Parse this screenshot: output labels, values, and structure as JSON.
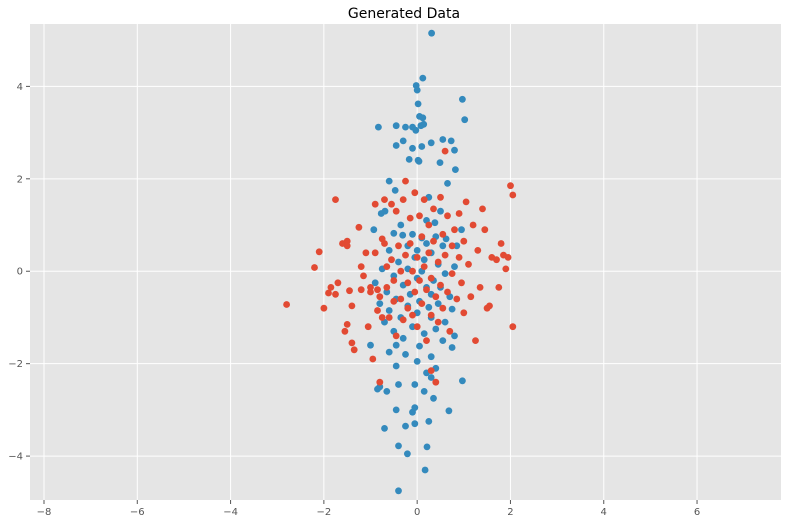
{
  "chart_data": {
    "type": "scatter",
    "title": "Generated Data",
    "xlabel": "",
    "ylabel": "",
    "xlim": [
      -8.3,
      7.8
    ],
    "ylim": [
      -4.95,
      5.35
    ],
    "x_ticks": [
      -8,
      -6,
      -4,
      -2,
      0,
      2,
      4,
      6
    ],
    "y_ticks": [
      -4,
      -2,
      0,
      2,
      4
    ],
    "grid": true,
    "background": "#e5e5e5",
    "grid_color": "#ffffff",
    "series": [
      {
        "color": "#348abd",
        "points": [
          [
            0.31,
            5.15
          ],
          [
            0.12,
            4.18
          ],
          [
            0.0,
            3.92
          ],
          [
            -0.02,
            4.02
          ],
          [
            0.97,
            3.72
          ],
          [
            0.02,
            3.62
          ],
          [
            1.02,
            3.28
          ],
          [
            -0.83,
            3.12
          ],
          [
            -0.45,
            3.15
          ],
          [
            -0.25,
            3.12
          ],
          [
            -0.1,
            3.12
          ],
          [
            0.08,
            3.15
          ],
          [
            0.14,
            3.18
          ],
          [
            0.05,
            3.35
          ],
          [
            0.12,
            3.32
          ],
          [
            -0.03,
            3.05
          ],
          [
            0.55,
            2.85
          ],
          [
            0.73,
            2.82
          ],
          [
            0.3,
            2.78
          ],
          [
            0.8,
            2.62
          ],
          [
            -0.45,
            2.72
          ],
          [
            -0.1,
            2.66
          ],
          [
            0.1,
            2.7
          ],
          [
            -0.3,
            2.82
          ],
          [
            0.49,
            2.35
          ],
          [
            -0.17,
            2.42
          ],
          [
            0.02,
            2.4
          ],
          [
            0.04,
            2.38
          ],
          [
            0.82,
            2.2
          ],
          [
            0.65,
            1.9
          ],
          [
            -0.6,
            1.95
          ],
          [
            -0.47,
            1.75
          ],
          [
            0.25,
            1.6
          ],
          [
            -0.69,
            1.3
          ],
          [
            -0.77,
            1.25
          ],
          [
            0.5,
            1.3
          ],
          [
            0.2,
            1.1
          ],
          [
            -0.35,
            1.0
          ],
          [
            0.38,
            1.05
          ],
          [
            0.95,
            0.9
          ],
          [
            -0.93,
            0.9
          ],
          [
            -0.5,
            0.82
          ],
          [
            -0.31,
            0.78
          ],
          [
            -0.1,
            0.8
          ],
          [
            0.1,
            0.72
          ],
          [
            0.4,
            0.75
          ],
          [
            0.62,
            0.7
          ],
          [
            0.2,
            0.6
          ],
          [
            -0.2,
            0.55
          ],
          [
            0.55,
            0.55
          ],
          [
            0.85,
            0.55
          ],
          [
            -0.6,
            0.45
          ],
          [
            0.0,
            0.45
          ],
          [
            0.3,
            0.4
          ],
          [
            -0.05,
            0.3
          ],
          [
            0.15,
            0.25
          ],
          [
            -0.4,
            0.2
          ],
          [
            0.45,
            0.15
          ],
          [
            0.8,
            0.1
          ],
          [
            -0.75,
            0.05
          ],
          [
            -0.2,
            0.05
          ],
          [
            0.1,
            0.0
          ],
          [
            0.6,
            -0.05
          ],
          [
            -0.5,
            -0.1
          ],
          [
            0.0,
            -0.15
          ],
          [
            0.35,
            -0.2
          ],
          [
            -0.9,
            -0.25
          ],
          [
            -0.3,
            -0.3
          ],
          [
            0.2,
            -0.35
          ],
          [
            0.5,
            -0.35
          ],
          [
            -0.65,
            -0.45
          ],
          [
            -0.15,
            -0.5
          ],
          [
            0.3,
            -0.5
          ],
          [
            0.7,
            -0.55
          ],
          [
            -0.45,
            -0.6
          ],
          [
            0.05,
            -0.65
          ],
          [
            0.45,
            -0.7
          ],
          [
            -0.8,
            -0.7
          ],
          [
            -0.2,
            -0.75
          ],
          [
            0.25,
            -0.78
          ],
          [
            0.75,
            -0.82
          ],
          [
            -0.6,
            -0.85
          ],
          [
            0.0,
            -0.9
          ],
          [
            -0.35,
            -1.0
          ],
          [
            0.3,
            -1.0
          ],
          [
            0.6,
            -1.1
          ],
          [
            -0.7,
            -1.1
          ],
          [
            -0.1,
            -1.2
          ],
          [
            0.4,
            -1.25
          ],
          [
            -0.5,
            -1.3
          ],
          [
            0.15,
            -1.35
          ],
          [
            0.8,
            -1.4
          ],
          [
            -0.3,
            -1.45
          ],
          [
            0.55,
            -1.5
          ],
          [
            -1.0,
            -1.6
          ],
          [
            -0.45,
            -1.6
          ],
          [
            0.05,
            -1.62
          ],
          [
            0.75,
            -1.65
          ],
          [
            -0.6,
            -1.75
          ],
          [
            -0.25,
            -1.8
          ],
          [
            0.3,
            -1.85
          ],
          [
            0.0,
            -1.95
          ],
          [
            -0.45,
            -2.05
          ],
          [
            0.4,
            -2.1
          ],
          [
            0.3,
            -2.3
          ],
          [
            0.2,
            -2.2
          ],
          [
            0.97,
            -2.37
          ],
          [
            -0.4,
            -2.45
          ],
          [
            -0.8,
            -2.5
          ],
          [
            -0.85,
            -2.55
          ],
          [
            -0.05,
            -2.45
          ],
          [
            0.15,
            -2.6
          ],
          [
            0.35,
            -2.75
          ],
          [
            -0.65,
            -2.6
          ],
          [
            -0.45,
            -3.0
          ],
          [
            -0.05,
            -2.95
          ],
          [
            -0.1,
            -3.05
          ],
          [
            0.68,
            -3.02
          ],
          [
            -0.25,
            -3.35
          ],
          [
            -0.05,
            -3.3
          ],
          [
            0.25,
            -3.25
          ],
          [
            -0.7,
            -3.4
          ],
          [
            -0.4,
            -3.78
          ],
          [
            0.21,
            -3.8
          ],
          [
            -0.21,
            -3.95
          ],
          [
            0.17,
            -4.3
          ],
          [
            -0.4,
            -4.75
          ]
        ]
      },
      {
        "color": "#e24a33",
        "points": [
          [
            -2.8,
            -0.72
          ],
          [
            -2.1,
            0.42
          ],
          [
            -2.2,
            0.08
          ],
          [
            -1.85,
            -0.35
          ],
          [
            -1.9,
            -0.47
          ],
          [
            -1.75,
            -0.5
          ],
          [
            -2.0,
            -0.8
          ],
          [
            -1.75,
            1.55
          ],
          [
            -1.7,
            -0.25
          ],
          [
            -1.6,
            0.6
          ],
          [
            -1.5,
            0.65
          ],
          [
            -1.5,
            0.55
          ],
          [
            -1.55,
            -1.3
          ],
          [
            -1.5,
            -1.15
          ],
          [
            -1.45,
            -0.42
          ],
          [
            -1.4,
            -0.75
          ],
          [
            -1.4,
            -1.55
          ],
          [
            -1.35,
            -1.7
          ],
          [
            -1.25,
            0.95
          ],
          [
            -1.2,
            0.1
          ],
          [
            -1.2,
            -0.4
          ],
          [
            -1.15,
            -0.1
          ],
          [
            -1.1,
            0.4
          ],
          [
            -1.05,
            -1.2
          ],
          [
            -1.0,
            -0.45
          ],
          [
            -1.0,
            -0.35
          ],
          [
            -0.95,
            -1.9
          ],
          [
            -0.9,
            1.45
          ],
          [
            -0.9,
            0.4
          ],
          [
            -0.85,
            -0.4
          ],
          [
            -0.85,
            -0.85
          ],
          [
            -0.8,
            -0.55
          ],
          [
            -0.75,
            0.7
          ],
          [
            -0.75,
            -1.0
          ],
          [
            -0.7,
            1.55
          ],
          [
            -0.7,
            0.6
          ],
          [
            -0.65,
            0.1
          ],
          [
            -0.65,
            -0.35
          ],
          [
            -0.6,
            -1.0
          ],
          [
            -0.55,
            1.45
          ],
          [
            -0.55,
            0.25
          ],
          [
            -0.5,
            -0.2
          ],
          [
            -0.5,
            -0.65
          ],
          [
            -0.45,
            1.3
          ],
          [
            -0.45,
            -1.4
          ],
          [
            -0.4,
            0.55
          ],
          [
            -0.35,
            0.0
          ],
          [
            -0.35,
            -0.6
          ],
          [
            -0.3,
            1.55
          ],
          [
            -0.3,
            -1.05
          ],
          [
            -0.25,
            1.95
          ],
          [
            -0.25,
            0.35
          ],
          [
            -0.2,
            -0.25
          ],
          [
            -0.2,
            -0.8
          ],
          [
            -0.15,
            1.15
          ],
          [
            -0.15,
            0.6
          ],
          [
            -0.1,
            0.0
          ],
          [
            -0.1,
            -0.95
          ],
          [
            -0.05,
            1.7
          ],
          [
            -0.05,
            -0.45
          ],
          [
            0.0,
            0.3
          ],
          [
            0.0,
            -1.2
          ],
          [
            0.05,
            1.2
          ],
          [
            0.05,
            -0.2
          ],
          [
            0.1,
            0.75
          ],
          [
            0.1,
            -0.7
          ],
          [
            0.15,
            1.55
          ],
          [
            0.15,
            0.1
          ],
          [
            0.2,
            -0.4
          ],
          [
            0.2,
            -1.5
          ],
          [
            0.25,
            1.0
          ],
          [
            0.25,
            0.4
          ],
          [
            0.3,
            -0.15
          ],
          [
            0.3,
            -0.95
          ],
          [
            0.35,
            1.35
          ],
          [
            0.35,
            0.65
          ],
          [
            0.4,
            -0.55
          ],
          [
            0.45,
            0.2
          ],
          [
            0.45,
            -1.1
          ],
          [
            0.5,
            1.6
          ],
          [
            0.5,
            -0.3
          ],
          [
            0.55,
            0.8
          ],
          [
            0.55,
            -0.8
          ],
          [
            0.6,
            0.35
          ],
          [
            0.65,
            1.2
          ],
          [
            0.65,
            -0.45
          ],
          [
            0.7,
            -1.3
          ],
          [
            0.75,
            0.55
          ],
          [
            0.75,
            -0.05
          ],
          [
            0.8,
            0.9
          ],
          [
            0.85,
            -0.6
          ],
          [
            0.9,
            1.25
          ],
          [
            0.9,
            0.3
          ],
          [
            0.95,
            -0.25
          ],
          [
            1.0,
            0.65
          ],
          [
            1.0,
            -0.9
          ],
          [
            1.05,
            1.5
          ],
          [
            1.1,
            0.15
          ],
          [
            1.15,
            -0.55
          ],
          [
            1.2,
            1.0
          ],
          [
            1.25,
            -1.5
          ],
          [
            1.3,
            0.45
          ],
          [
            1.35,
            -0.35
          ],
          [
            1.4,
            1.35
          ],
          [
            1.45,
            0.9
          ],
          [
            1.5,
            -0.8
          ],
          [
            1.55,
            -0.75
          ],
          [
            1.6,
            0.3
          ],
          [
            1.7,
            0.25
          ],
          [
            1.75,
            -0.35
          ],
          [
            1.8,
            0.6
          ],
          [
            1.85,
            0.35
          ],
          [
            1.9,
            0.05
          ],
          [
            1.95,
            0.3
          ],
          [
            2.0,
            1.85
          ],
          [
            2.05,
            1.65
          ],
          [
            2.05,
            -1.2
          ],
          [
            0.6,
            2.6
          ],
          [
            0.4,
            -2.4
          ],
          [
            -0.8,
            -2.4
          ],
          [
            0.3,
            -2.15
          ]
        ]
      }
    ]
  }
}
